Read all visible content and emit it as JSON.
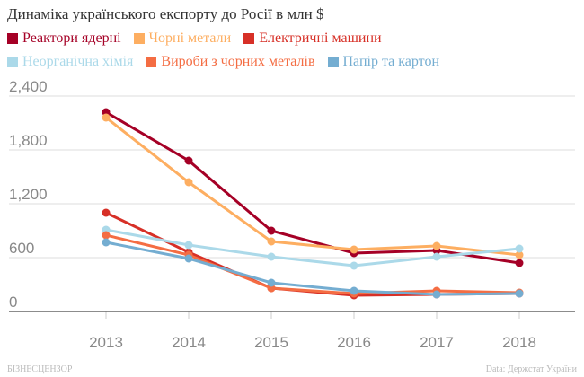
{
  "chart_data": {
    "type": "line",
    "title": "Динаміка українського експорту до Росії в млн $",
    "x": [
      2013,
      2014,
      2015,
      2016,
      2017,
      2018
    ],
    "ylim": [
      0,
      2400
    ],
    "yticks": [
      "0",
      "600",
      "1,200",
      "1,800",
      "2,400"
    ],
    "ytick_values": [
      0,
      600,
      1200,
      1800,
      2400
    ],
    "grid": true,
    "legend_position": "top",
    "series": [
      {
        "name": "Реактори ядерні",
        "color": "#a50026",
        "values": [
          2220,
          1680,
          900,
          650,
          680,
          540
        ]
      },
      {
        "name": "Чорні метали",
        "color": "#fdae61",
        "values": [
          2160,
          1440,
          780,
          690,
          730,
          630
        ]
      },
      {
        "name": "Електричні машини",
        "color": "#d73027",
        "values": [
          1100,
          660,
          260,
          180,
          190,
          200
        ]
      },
      {
        "name": "Неорганічна хімія",
        "color": "#abd9e9",
        "values": [
          910,
          740,
          610,
          510,
          610,
          700
        ]
      },
      {
        "name": "Вироби з чорних металів",
        "color": "#f46d43",
        "values": [
          850,
          630,
          260,
          200,
          230,
          210
        ]
      },
      {
        "name": "Папір та картон",
        "color": "#74add1",
        "values": [
          770,
          590,
          320,
          230,
          190,
          200
        ]
      }
    ]
  },
  "footer": {
    "left": "БІЗНЕСЦЕНЗОР",
    "right": "Data: Держстат України"
  }
}
